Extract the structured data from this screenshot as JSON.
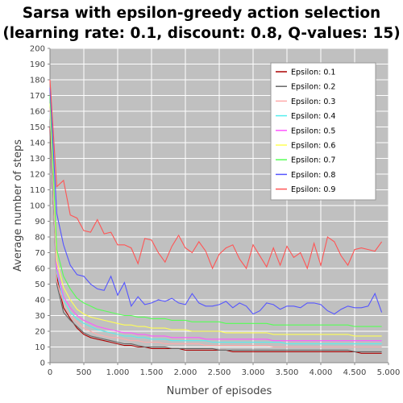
{
  "chart_data": {
    "type": "line",
    "title_line1": "Sarsa with epsilon-greedy action selection",
    "title_line2": "(learning rate: 0.1, discount: 0.8, Q-values: 15)",
    "xlabel": "Number of episodes",
    "ylabel": "Average number of steps",
    "xlim": [
      0,
      5000
    ],
    "ylim": [
      0,
      200
    ],
    "xticks": [
      0,
      500,
      1000,
      1500,
      2000,
      2500,
      3000,
      3500,
      4000,
      4500,
      5000
    ],
    "xtick_labels": [
      "0",
      "500",
      "1.000",
      "1.500",
      "2.000",
      "2.500",
      "3.000",
      "3.500",
      "4.000",
      "4.500",
      "5.000"
    ],
    "yticks": [
      0,
      10,
      20,
      30,
      40,
      50,
      60,
      70,
      80,
      90,
      100,
      110,
      120,
      130,
      140,
      150,
      160,
      170,
      180,
      190,
      200
    ],
    "grid": true,
    "legend_position": "top-right",
    "x": [
      0,
      100,
      200,
      300,
      400,
      500,
      600,
      700,
      800,
      900,
      1000,
      1100,
      1200,
      1300,
      1400,
      1500,
      1600,
      1700,
      1800,
      1900,
      2000,
      2100,
      2200,
      2300,
      2400,
      2500,
      2600,
      2700,
      2800,
      2900,
      3000,
      3100,
      3200,
      3300,
      3400,
      3500,
      3600,
      3700,
      3800,
      3900,
      4000,
      4100,
      4200,
      4300,
      4400,
      4500,
      4600,
      4700,
      4800,
      4900
    ],
    "series": [
      {
        "name": "Epsilon: 0.1",
        "color": "#aa0000",
        "values": [
          150,
          55,
          35,
          28,
          22,
          18,
          16,
          15,
          14,
          13,
          12,
          11,
          11,
          10,
          10,
          9,
          9,
          9,
          9,
          9,
          8,
          8,
          8,
          8,
          8,
          8,
          8,
          7,
          7,
          7,
          7,
          7,
          7,
          7,
          7,
          7,
          7,
          7,
          7,
          7,
          7,
          7,
          7,
          7,
          7,
          7,
          6,
          6,
          6,
          6
        ]
      },
      {
        "name": "Epsilon: 0.2",
        "color": "#666666",
        "values": [
          155,
          50,
          32,
          27,
          23,
          19,
          17,
          16,
          15,
          14,
          13,
          12,
          12,
          11,
          10,
          10,
          10,
          10,
          9,
          9,
          9,
          9,
          9,
          9,
          9,
          8,
          8,
          8,
          8,
          8,
          8,
          8,
          8,
          8,
          8,
          8,
          8,
          8,
          8,
          8,
          8,
          8,
          8,
          8,
          8,
          7,
          7,
          7,
          7,
          7
        ]
      },
      {
        "name": "Epsilon: 0.3",
        "color": "#ffaaaa",
        "values": [
          160,
          52,
          38,
          30,
          26,
          22,
          20,
          18,
          17,
          16,
          16,
          15,
          14,
          14,
          13,
          13,
          13,
          12,
          12,
          12,
          12,
          12,
          12,
          11,
          11,
          11,
          11,
          11,
          11,
          11,
          11,
          11,
          11,
          10,
          10,
          10,
          10,
          10,
          10,
          10,
          10,
          10,
          10,
          10,
          10,
          10,
          10,
          10,
          10,
          10
        ]
      },
      {
        "name": "Epsilon: 0.4",
        "color": "#55eeee",
        "values": [
          160,
          58,
          40,
          32,
          28,
          25,
          23,
          21,
          20,
          19,
          18,
          17,
          17,
          16,
          16,
          15,
          15,
          15,
          14,
          14,
          14,
          14,
          14,
          14,
          13,
          13,
          13,
          13,
          13,
          13,
          13,
          13,
          13,
          13,
          13,
          12,
          12,
          12,
          12,
          12,
          12,
          12,
          12,
          12,
          12,
          12,
          12,
          12,
          12,
          12
        ]
      },
      {
        "name": "Epsilon: 0.5",
        "color": "#ff55ff",
        "values": [
          162,
          60,
          42,
          35,
          30,
          27,
          25,
          23,
          22,
          21,
          20,
          19,
          19,
          18,
          18,
          17,
          17,
          17,
          16,
          16,
          16,
          16,
          16,
          15,
          15,
          15,
          15,
          15,
          15,
          15,
          15,
          15,
          15,
          14,
          14,
          14,
          14,
          14,
          14,
          14,
          14,
          14,
          14,
          14,
          14,
          14,
          14,
          14,
          14,
          14
        ]
      },
      {
        "name": "Epsilon: 0.6",
        "color": "#ffff55",
        "values": [
          165,
          65,
          48,
          40,
          34,
          31,
          29,
          28,
          27,
          26,
          25,
          24,
          24,
          23,
          23,
          22,
          22,
          22,
          21,
          21,
          21,
          20,
          20,
          20,
          20,
          20,
          19,
          19,
          19,
          19,
          19,
          19,
          19,
          18,
          18,
          18,
          18,
          18,
          18,
          18,
          18,
          18,
          18,
          18,
          18,
          17,
          17,
          17,
          17,
          17
        ]
      },
      {
        "name": "Epsilon: 0.7",
        "color": "#55ff55",
        "values": [
          170,
          72,
          55,
          47,
          41,
          38,
          36,
          34,
          33,
          32,
          31,
          30,
          30,
          29,
          29,
          28,
          28,
          28,
          27,
          27,
          27,
          26,
          26,
          26,
          26,
          26,
          25,
          25,
          25,
          25,
          25,
          25,
          25,
          24,
          24,
          24,
          24,
          24,
          24,
          24,
          24,
          24,
          24,
          24,
          24,
          23,
          23,
          23,
          23,
          23
        ]
      },
      {
        "name": "Epsilon: 0.8",
        "color": "#5555ff",
        "values": [
          175,
          95,
          75,
          62,
          56,
          55,
          50,
          47,
          46,
          55,
          43,
          51,
          36,
          42,
          37,
          38,
          40,
          39,
          41,
          38,
          37,
          44,
          38,
          36,
          36,
          37,
          39,
          35,
          38,
          36,
          31,
          33,
          38,
          37,
          34,
          36,
          36,
          35,
          38,
          38,
          37,
          33,
          31,
          34,
          36,
          35,
          35,
          36,
          44,
          32
        ]
      },
      {
        "name": "Epsilon: 0.9",
        "color": "#ff5555",
        "values": [
          180,
          112,
          116,
          94,
          92,
          84,
          83,
          91,
          82,
          83,
          75,
          75,
          73,
          63,
          79,
          78,
          70,
          64,
          74,
          81,
          73,
          70,
          77,
          71,
          60,
          69,
          73,
          75,
          66,
          60,
          75,
          68,
          61,
          73,
          62,
          74,
          67,
          70,
          60,
          76,
          62,
          80,
          77,
          68,
          62,
          72,
          73,
          72,
          71,
          77
        ]
      }
    ]
  }
}
